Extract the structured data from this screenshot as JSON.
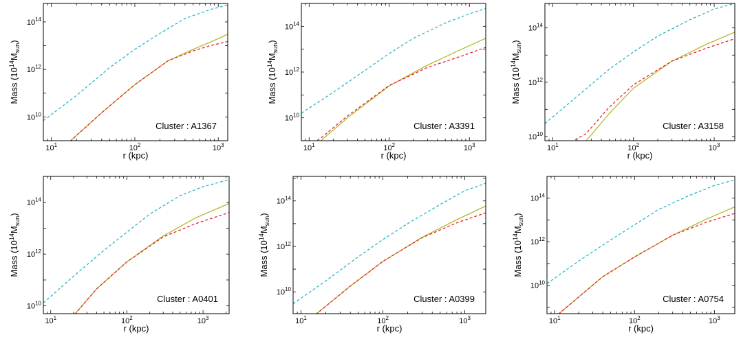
{
  "chart_data": [
    {
      "type": "line",
      "xscale": "log",
      "yscale": "log",
      "xlim": [
        8,
        1300
      ],
      "ylim": [
        1000000000.0,
        600000000000000.0
      ],
      "xticks": [
        10,
        100,
        1000
      ],
      "yticks": [
        10000000000.0,
        1000000000000.0,
        100000000000000.0
      ],
      "xlabel": "r (kpc)",
      "ylabel": "Mass (10^14 M_sun)",
      "annotation": "Cluster : A1367",
      "series": [
        {
          "color": "#2bb5c8",
          "dash": "dashed",
          "x": [
            8,
            20,
            50,
            100,
            200,
            400,
            800,
            1300
          ],
          "y": [
            7000000000.0,
            80000000000.0,
            1200000000000.0,
            7000000000000.0,
            33000000000000.0,
            140000000000000.0,
            330000000000000.0,
            520000000000000.0
          ]
        },
        {
          "color": "#b5b82b",
          "dash": "solid",
          "x": [
            8,
            17,
            40,
            100,
            250,
            500,
            800,
            1300
          ],
          "y": [
            300000000.0,
            1000000000.0,
            15000000000.0,
            230000000000.0,
            2300000000000.0,
            7000000000000.0,
            14000000000000.0,
            30000000000000.0
          ]
        },
        {
          "color": "#e8202a",
          "dash": "dashed",
          "x": [
            8,
            17,
            40,
            100,
            250,
            500,
            800,
            1300
          ],
          "y": [
            300000000.0,
            1000000000.0,
            15000000000.0,
            230000000000.0,
            2300000000000.0,
            6000000000000.0,
            10000000000000.0,
            15000000000000.0
          ]
        }
      ]
    },
    {
      "type": "line",
      "xscale": "log",
      "yscale": "log",
      "xlim": [
        8,
        1600
      ],
      "ylim": [
        1000000000.0,
        1000000000000000.0
      ],
      "xticks": [
        10,
        100,
        1000
      ],
      "yticks": [
        10000000000.0,
        1000000000000.0,
        100000000000000.0
      ],
      "xlabel": "r (kpc)",
      "ylabel": "Mass (10^14 M_sun)",
      "annotation": "Cluster : A3391",
      "series": [
        {
          "color": "#2bb5c8",
          "dash": "dashed",
          "x": [
            8,
            20,
            50,
            100,
            200,
            500,
            1000,
            1600
          ],
          "y": [
            16000000000.0,
            130000000000.0,
            1200000000000.0,
            6500000000000.0,
            30000000000000.0,
            140000000000000.0,
            350000000000000.0,
            600000000000000.0
          ]
        },
        {
          "color": "#b5b82b",
          "dash": "solid",
          "x": [
            10,
            14,
            30,
            100,
            300,
            800,
            1600
          ],
          "y": [
            400000000.0,
            1000000000.0,
            10000000000.0,
            250000000000.0,
            2000000000000.0,
            10000000000000.0,
            30000000000000.0
          ]
        },
        {
          "color": "#e8202a",
          "dash": "dashed",
          "x": [
            10,
            14,
            30,
            100,
            300,
            800,
            1600
          ],
          "y": [
            600000000.0,
            1300000000.0,
            12000000000.0,
            260000000000.0,
            1600000000000.0,
            5000000000000.0,
            12000000000000.0
          ]
        }
      ]
    },
    {
      "type": "line",
      "xscale": "log",
      "yscale": "log",
      "xlim": [
        8,
        1800
      ],
      "ylim": [
        7000000000.0,
        800000000000000.0
      ],
      "xticks": [
        10,
        100,
        1000
      ],
      "yticks": [
        10000000000.0,
        1000000000000.0,
        100000000000000.0
      ],
      "xlabel": "r (kpc)",
      "ylabel": "Mass (10^14 M_sun)",
      "annotation": "Cluster : A3158",
      "series": [
        {
          "color": "#2bb5c8",
          "dash": "dashed",
          "x": [
            8,
            20,
            50,
            100,
            200,
            500,
            1000,
            1800
          ],
          "y": [
            30000000000.0,
            300000000000.0,
            3000000000000.0,
            13000000000000.0,
            50000000000000.0,
            200000000000000.0,
            500000000000000.0,
            800000000000000.0
          ]
        },
        {
          "color": "#b5b82b",
          "dash": "solid",
          "x": [
            20,
            26,
            50,
            100,
            300,
            800,
            1800
          ],
          "y": [
            4000000000.0,
            7000000000.0,
            70000000000.0,
            600000000000.0,
            6000000000000.0,
            25000000000000.0,
            70000000000000.0
          ]
        },
        {
          "color": "#e8202a",
          "dash": "dashed",
          "x": [
            15,
            26,
            50,
            100,
            300,
            800,
            1800
          ],
          "y": [
            5000000000.0,
            13000000000.0,
            120000000000.0,
            800000000000.0,
            6000000000000.0,
            18000000000000.0,
            40000000000000.0
          ]
        }
      ]
    },
    {
      "type": "line",
      "xscale": "log",
      "yscale": "log",
      "xlim": [
        8,
        2200
      ],
      "ylim": [
        5000000000.0,
        1000000000000000.0
      ],
      "xticks": [
        10,
        100,
        1000
      ],
      "yticks": [
        10000000000.0,
        1000000000000.0,
        100000000000000.0
      ],
      "xlabel": "r (kpc)",
      "ylabel": "Mass (10^14 M_sun)",
      "annotation": "Cluster : A0401",
      "series": [
        {
          "color": "#2bb5c8",
          "dash": "dashed",
          "x": [
            8,
            20,
            50,
            100,
            200,
            500,
            1000,
            2200
          ],
          "y": [
            13000000000.0,
            140000000000.0,
            1400000000000.0,
            7000000000000.0,
            35000000000000.0,
            180000000000000.0,
            400000000000000.0,
            750000000000000.0
          ]
        },
        {
          "color": "#b5b82b",
          "dash": "solid",
          "x": [
            16,
            21,
            40,
            100,
            300,
            800,
            2200
          ],
          "y": [
            3000000000.0,
            5000000000.0,
            45000000000.0,
            500000000000.0,
            5000000000000.0,
            25000000000000.0,
            90000000000000.0
          ]
        },
        {
          "color": "#e8202a",
          "dash": "dashed",
          "x": [
            16,
            21,
            40,
            100,
            300,
            800,
            2200
          ],
          "y": [
            3000000000.0,
            5000000000.0,
            45000000000.0,
            500000000000.0,
            4600000000000.0,
            15000000000000.0,
            40000000000000.0
          ]
        }
      ]
    },
    {
      "type": "line",
      "xscale": "log",
      "yscale": "log",
      "xlim": [
        8,
        1800
      ],
      "ylim": [
        1100000000.0,
        1200000000000000.0
      ],
      "xticks": [
        10,
        100,
        1000
      ],
      "yticks": [
        10000000000.0,
        1000000000000.0,
        100000000000000.0
      ],
      "xlabel": "r (kpc)",
      "ylabel": "Mass (10^14 M_sun)",
      "annotation": "Cluster : A0399",
      "series": [
        {
          "color": "#2bb5c8",
          "dash": "dashed",
          "x": [
            8,
            20,
            50,
            100,
            200,
            500,
            1000,
            1800
          ],
          "y": [
            3000000000.0,
            30000000000.0,
            350000000000.0,
            2000000000000.0,
            10000000000000.0,
            70000000000000.0,
            280000000000000.0,
            600000000000000.0
          ]
        },
        {
          "color": "#b5b82b",
          "dash": "solid",
          "x": [
            12,
            16,
            40,
            100,
            300,
            800,
            1800
          ],
          "y": [
            600000000.0,
            1200000000.0,
            18000000000.0,
            220000000000.0,
            2500000000000.0,
            15000000000000.0,
            60000000000000.0
          ]
        },
        {
          "color": "#e8202a",
          "dash": "dashed",
          "x": [
            12,
            16,
            40,
            100,
            300,
            800,
            1800
          ],
          "y": [
            600000000.0,
            1200000000.0,
            18000000000.0,
            220000000000.0,
            2400000000000.0,
            11000000000000.0,
            30000000000000.0
          ]
        }
      ]
    },
    {
      "type": "line",
      "xscale": "log",
      "yscale": "log",
      "xlim": [
        8,
        1800
      ],
      "ylim": [
        500000000.0,
        1000000000000000.0
      ],
      "xticks": [
        10,
        100,
        1000
      ],
      "yticks": [
        10000000000.0,
        1000000000000.0,
        100000000000000.0
      ],
      "xlabel": "r (kpc)",
      "ylabel": "Mass (10^14 M_sun)",
      "annotation": "Cluster : A0754",
      "series": [
        {
          "color": "#2bb5c8",
          "dash": "dashed",
          "x": [
            8,
            20,
            50,
            100,
            200,
            500,
            1000,
            1800
          ],
          "y": [
            12000000000.0,
            130000000000.0,
            1200000000000.0,
            6000000000000.0,
            30000000000000.0,
            140000000000000.0,
            380000000000000.0,
            700000000000000.0
          ]
        },
        {
          "color": "#b5b82b",
          "dash": "solid",
          "x": [
            9,
            12,
            40,
            100,
            300,
            800,
            1800
          ],
          "y": [
            250000000.0,
            600000000.0,
            25000000000.0,
            200000000000.0,
            2000000000000.0,
            11000000000000.0,
            40000000000000.0
          ]
        },
        {
          "color": "#e8202a",
          "dash": "dashed",
          "x": [
            9,
            12,
            40,
            100,
            300,
            800,
            1800
          ],
          "y": [
            250000000.0,
            600000000.0,
            25000000000.0,
            200000000000.0,
            2000000000000.0,
            8000000000000.0,
            20000000000000.0
          ]
        }
      ]
    }
  ]
}
